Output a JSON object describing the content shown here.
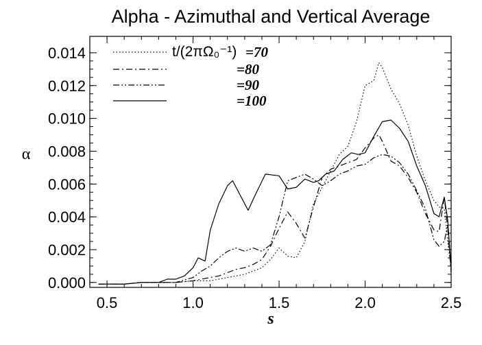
{
  "chart_data": {
    "type": "line",
    "title": "Alpha - Azimuthal and Vertical Average",
    "xlabel": "s",
    "ylabel": "α",
    "xlim": [
      0.4,
      2.5
    ],
    "ylim": [
      -0.0003,
      0.015
    ],
    "xticks": [
      "0.5",
      "1.0",
      "1.5",
      "2.0",
      "2.5"
    ],
    "xtick_values": [
      0.5,
      1.0,
      1.5,
      2.0,
      2.5
    ],
    "yticks": [
      "0.000",
      "0.002",
      "0.004",
      "0.006",
      "0.008",
      "0.010",
      "0.012",
      "0.014"
    ],
    "ytick_values": [
      0.0,
      0.002,
      0.004,
      0.006,
      0.008,
      0.01,
      0.012,
      0.014
    ],
    "grid": false,
    "legend_position": "top-left",
    "legend_prefix": "t/(2πΩ₀⁻¹)",
    "series": [
      {
        "name": "=70",
        "dash": "dotted",
        "x": [
          0.45,
          0.6,
          0.7,
          0.8,
          0.9,
          1.0,
          1.05,
          1.1,
          1.15,
          1.2,
          1.25,
          1.3,
          1.35,
          1.4,
          1.45,
          1.5,
          1.55,
          1.6,
          1.65,
          1.7,
          1.75,
          1.8,
          1.85,
          1.9,
          1.95,
          2.0,
          2.05,
          2.08,
          2.1,
          2.15,
          2.2,
          2.25,
          2.3,
          2.35,
          2.4,
          2.43,
          2.46,
          2.48,
          2.5
        ],
        "values": [
          -0.0001,
          -0.0001,
          0.0,
          0.0,
          0.0,
          0.0001,
          0.0001,
          0.0001,
          0.0002,
          0.0003,
          0.0004,
          0.0005,
          0.0007,
          0.0009,
          0.0014,
          0.0021,
          0.0016,
          0.0015,
          0.0025,
          0.0048,
          0.0058,
          0.0068,
          0.0078,
          0.0083,
          0.0098,
          0.012,
          0.0123,
          0.0134,
          0.0131,
          0.0118,
          0.0109,
          0.0096,
          0.0077,
          0.0062,
          0.005,
          0.0046,
          0.0045,
          0.0025,
          0.0008
        ]
      },
      {
        "name": "=80",
        "dash": "dash-dot",
        "x": [
          0.45,
          0.6,
          0.7,
          0.8,
          0.9,
          1.0,
          1.05,
          1.1,
          1.15,
          1.2,
          1.25,
          1.3,
          1.35,
          1.4,
          1.45,
          1.5,
          1.55,
          1.6,
          1.65,
          1.7,
          1.75,
          1.8,
          1.85,
          1.9,
          1.95,
          2.0,
          2.05,
          2.08,
          2.1,
          2.15,
          2.2,
          2.25,
          2.3,
          2.35,
          2.4,
          2.43,
          2.46,
          2.48,
          2.5
        ],
        "values": [
          -0.0001,
          -0.0001,
          0.0,
          0.0,
          0.0,
          0.0001,
          0.0002,
          0.0003,
          0.0004,
          0.0006,
          0.0008,
          0.0009,
          0.0011,
          0.0014,
          0.0022,
          0.0033,
          0.0043,
          0.0036,
          0.0027,
          0.0046,
          0.0064,
          0.0069,
          0.0071,
          0.0073,
          0.0075,
          0.0082,
          0.0088,
          0.009,
          0.0086,
          0.0074,
          0.0071,
          0.0064,
          0.0055,
          0.0042,
          0.0032,
          0.0031,
          0.0052,
          0.0033,
          0.0006
        ]
      },
      {
        "name": "=90",
        "dash": "dash-dot-dot",
        "x": [
          0.45,
          0.6,
          0.7,
          0.8,
          0.9,
          1.0,
          1.05,
          1.1,
          1.15,
          1.2,
          1.25,
          1.3,
          1.35,
          1.4,
          1.45,
          1.5,
          1.55,
          1.6,
          1.65,
          1.7,
          1.75,
          1.8,
          1.85,
          1.9,
          1.95,
          2.0,
          2.05,
          2.1,
          2.15,
          2.2,
          2.25,
          2.3,
          2.35,
          2.4,
          2.43,
          2.46,
          2.48,
          2.5
        ],
        "values": [
          -0.0001,
          -0.0001,
          0.0,
          0.0,
          0.0,
          0.0003,
          0.0007,
          0.001,
          0.0015,
          0.0019,
          0.0021,
          0.0019,
          0.0021,
          0.0019,
          0.0023,
          0.004,
          0.0062,
          0.0064,
          0.0066,
          0.0063,
          0.0059,
          0.0062,
          0.0066,
          0.0068,
          0.0071,
          0.0072,
          0.0076,
          0.0078,
          0.0077,
          0.0073,
          0.0066,
          0.0056,
          0.0045,
          0.0026,
          0.0022,
          0.0025,
          0.0035,
          0.001
        ]
      },
      {
        "name": "=100",
        "dash": "solid",
        "x": [
          0.45,
          0.6,
          0.7,
          0.8,
          0.85,
          0.9,
          0.95,
          1.0,
          1.03,
          1.07,
          1.1,
          1.15,
          1.2,
          1.23,
          1.27,
          1.32,
          1.36,
          1.42,
          1.5,
          1.55,
          1.6,
          1.65,
          1.7,
          1.73,
          1.77,
          1.82,
          1.87,
          1.92,
          1.96,
          2.0,
          2.05,
          2.1,
          2.15,
          2.2,
          2.25,
          2.3,
          2.35,
          2.4,
          2.43,
          2.46,
          2.48,
          2.5
        ],
        "values": [
          -0.0001,
          -0.0001,
          0.0,
          0.0,
          0.0002,
          0.0002,
          0.0004,
          0.0009,
          0.0015,
          0.0013,
          0.0032,
          0.0048,
          0.0059,
          0.0062,
          0.0054,
          0.0044,
          0.0053,
          0.0066,
          0.0065,
          0.0057,
          0.0058,
          0.0063,
          0.0061,
          0.0062,
          0.0066,
          0.0068,
          0.0075,
          0.0079,
          0.0078,
          0.0079,
          0.0089,
          0.0098,
          0.0099,
          0.0094,
          0.0086,
          0.0071,
          0.0059,
          0.0042,
          0.004,
          0.0052,
          0.0038,
          0.0008
        ]
      }
    ]
  }
}
